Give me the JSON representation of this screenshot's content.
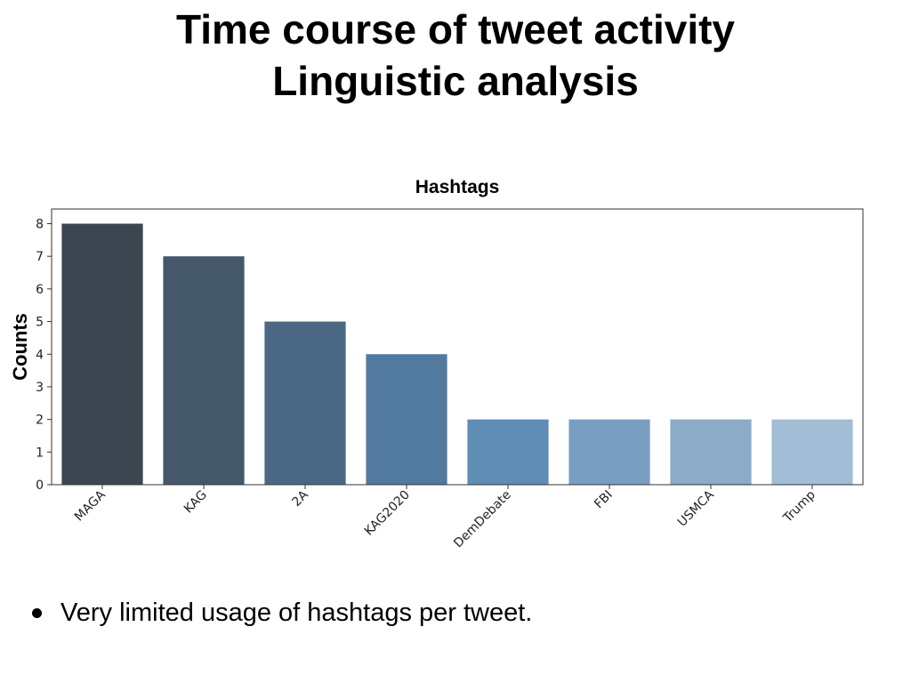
{
  "slide": {
    "title_line1": "Time course of tweet activity",
    "title_line2": "Linguistic analysis",
    "bullets": [
      "Very limited usage of hashtags per tweet."
    ]
  },
  "chart_data": {
    "type": "bar",
    "title": "Hashtags",
    "xlabel": "",
    "ylabel": "Counts",
    "categories": [
      "MAGA",
      "KAG",
      "2A",
      "KAG2020",
      "DemDebate",
      "FBI",
      "USMCA",
      "Trump"
    ],
    "values": [
      8,
      7,
      5,
      4,
      2,
      2,
      2,
      2
    ],
    "ylim": [
      0,
      8.45
    ],
    "yticks": [
      0,
      1,
      2,
      3,
      4,
      5,
      6,
      7,
      8
    ],
    "grid": false,
    "legend": "none",
    "colors": [
      "#3b4650",
      "#445869",
      "#4a6884",
      "#527a9e",
      "#5f8db5",
      "#789fc2",
      "#8cabc8",
      "#a2bdd5"
    ]
  }
}
